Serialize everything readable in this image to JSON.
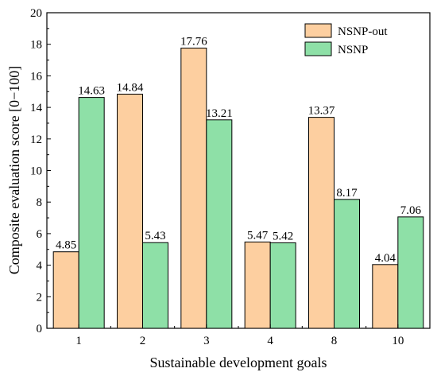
{
  "chart_data": {
    "type": "bar",
    "title": "",
    "xlabel": "Sustainable development goals",
    "ylabel": "Composite evaluation score [0−100]",
    "ylim": [
      0,
      20
    ],
    "yticks": [
      0,
      2,
      4,
      6,
      8,
      10,
      12,
      14,
      16,
      18,
      20
    ],
    "categories": [
      "1",
      "2",
      "3",
      "4",
      "8",
      "10"
    ],
    "series": [
      {
        "name": "NSNP-out",
        "color": "#fdcfa0",
        "values": [
          4.85,
          14.84,
          17.76,
          5.47,
          13.37,
          4.04
        ]
      },
      {
        "name": "NSNP",
        "color": "#8ee0a7",
        "values": [
          14.63,
          5.43,
          13.21,
          5.42,
          8.17,
          7.06
        ]
      }
    ],
    "value_labels": [
      [
        "4.85",
        "14.84",
        "17.76",
        "5.47",
        "13.37",
        "4.04"
      ],
      [
        "14.63",
        "5.43",
        "13.21",
        "5.42",
        "8.17",
        "7.06"
      ]
    ],
    "legend_position": "top-right",
    "grid": false
  }
}
